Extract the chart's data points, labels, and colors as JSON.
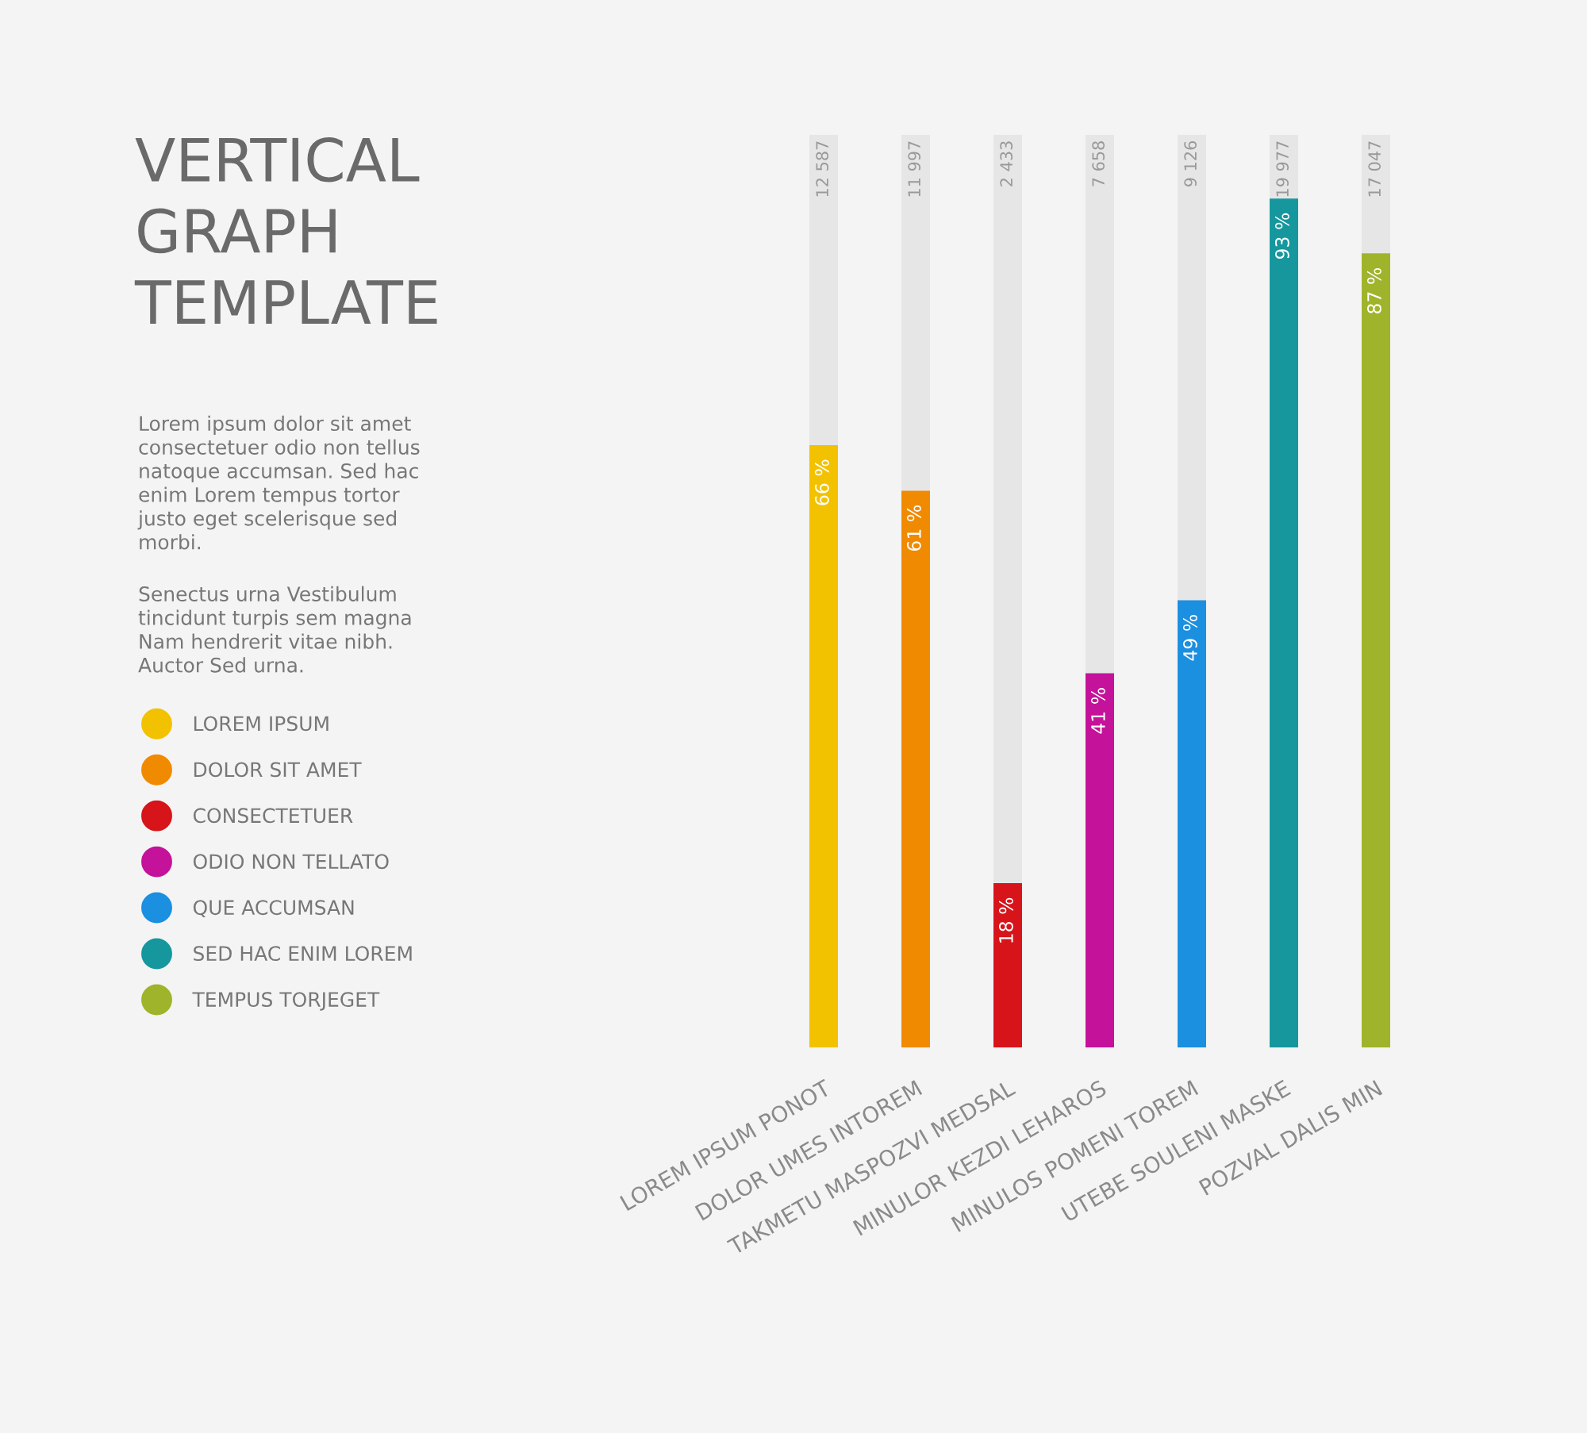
{
  "chart_data": {
    "type": "bar",
    "title": "VERTICAL\nGRAPH\nTEMPLATE",
    "categories": [
      "LOREM IPSUM PONOT",
      "DOLOR UMES INTOREM",
      "TAKMETU MASPOZVI MEDSAL",
      "MINULOR KEZDI LEHAROS",
      "MINULOS POMENI TOREM",
      "UTEBE SOULENI MASKE",
      "POZVAL DALIS MIN"
    ],
    "series": [
      {
        "name": "LOREM IPSUM",
        "color": "#f2c200",
        "values": [
          66,
          null,
          null,
          null,
          null,
          null,
          null
        ],
        "value_labels": [
          "66 %",
          null,
          null,
          null,
          null,
          null,
          null
        ]
      },
      {
        "name": "DOLOR SIT AMET",
        "color": "#f08a00",
        "values": [
          null,
          61,
          null,
          null,
          null,
          null,
          null
        ],
        "value_labels": [
          null,
          "61 %",
          null,
          null,
          null,
          null,
          null
        ]
      },
      {
        "name": "CONSECTETUER",
        "color": "#d7141a",
        "values": [
          null,
          null,
          18,
          null,
          null,
          null,
          null
        ],
        "value_labels": [
          null,
          null,
          "18 %",
          null,
          null,
          null,
          null
        ]
      },
      {
        "name": "ODIO NON TELLATO",
        "color": "#c4129a",
        "values": [
          null,
          null,
          null,
          41,
          null,
          null,
          null
        ],
        "value_labels": [
          null,
          null,
          null,
          "41 %",
          null,
          null,
          null
        ]
      },
      {
        "name": "QUE ACCUMSAN",
        "color": "#1b8fe0",
        "values": [
          null,
          null,
          null,
          null,
          49,
          null,
          null
        ],
        "value_labels": [
          null,
          null,
          null,
          null,
          "49 %",
          null,
          null
        ]
      },
      {
        "name": "SED HAC ENIM LOREM",
        "color": "#16979e",
        "values": [
          null,
          null,
          null,
          null,
          null,
          93,
          null
        ],
        "value_labels": [
          null,
          null,
          null,
          null,
          null,
          "93 %",
          null
        ]
      },
      {
        "name": "TEMPUS TORJEGET",
        "color": "#9fb42a",
        "values": [
          null,
          null,
          null,
          null,
          null,
          null,
          87
        ],
        "value_labels": [
          null,
          null,
          null,
          null,
          null,
          null,
          "87 %"
        ]
      }
    ],
    "ylim": [
      0,
      100
    ],
    "tick_labels": "x",
    "grid": false,
    "legend": "left",
    "annotations": [
      "Lorem ipsum dolor sit amet\nconsectetuer odio non tellus\nnatoque accumsan. Sed hac\nenim Lorem tempus tortor\njusto eget scelerisque sed\nmorbi.",
      "Senectus urna Vestibulum\ntincidunt turpis sem magna\nNam hendrerit vitae nibh.\nAuctor Sed urna.",
      "12 587",
      "11 997",
      "2 433",
      "7 658",
      "9 126",
      "19 977",
      "17 047"
    ]
  }
}
